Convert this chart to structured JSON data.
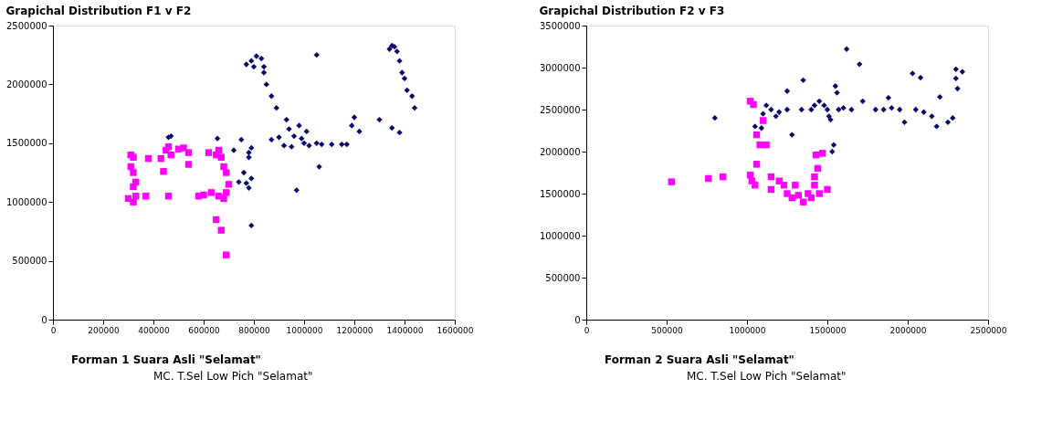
{
  "chart_data": [
    {
      "type": "scatter",
      "title": "Grapichal Distribution F1 v F2",
      "xlim": [
        0,
        1600000
      ],
      "ylim": [
        0,
        2500000
      ],
      "xticks": [
        0,
        200000,
        400000,
        600000,
        800000,
        1000000,
        1200000,
        1400000,
        1600000
      ],
      "yticks": [
        0,
        500000,
        1000000,
        1500000,
        2000000,
        2500000
      ],
      "grid": false,
      "annotations": [
        "Forman 1 Suara Asli \"Selamat\"",
        "MC. T.Sel Low Pich \"Selamat\""
      ],
      "series": [
        {
          "color": "#0a0a6e",
          "marker": "diamond",
          "x": [
            460000,
            470000,
            655000,
            720000,
            750000,
            780000,
            790000,
            780000,
            760000,
            740000,
            770000,
            790000,
            780000,
            790000,
            770000,
            790000,
            800000,
            810000,
            830000,
            840000,
            840000,
            850000,
            870000,
            890000,
            930000,
            940000,
            980000,
            1010000,
            920000,
            950000,
            960000,
            990000,
            1000000,
            1020000,
            1050000,
            1070000,
            1110000,
            1150000,
            1170000,
            1060000,
            970000,
            900000,
            870000,
            1050000,
            1190000,
            1200000,
            1220000,
            1300000,
            1340000,
            1350000,
            1370000,
            1380000,
            1390000,
            1400000,
            1410000,
            1430000,
            1440000,
            1350000,
            1380000,
            1360000
          ],
          "values": [
            1550000,
            1560000,
            1540000,
            1440000,
            1530000,
            1420000,
            1460000,
            1380000,
            1250000,
            1170000,
            1160000,
            1200000,
            1120000,
            800000,
            2170000,
            2200000,
            2150000,
            2240000,
            2220000,
            2150000,
            2100000,
            2000000,
            1900000,
            1800000,
            1700000,
            1620000,
            1650000,
            1600000,
            1480000,
            1470000,
            1560000,
            1540000,
            1500000,
            1480000,
            1500000,
            1490000,
            1490000,
            1490000,
            1490000,
            1300000,
            1100000,
            1550000,
            1530000,
            2250000,
            1650000,
            1720000,
            1600000,
            1700000,
            2300000,
            2330000,
            2280000,
            2200000,
            2100000,
            2050000,
            1950000,
            1900000,
            1800000,
            1630000,
            1590000,
            2320000
          ]
        },
        {
          "color": "#ff00ff",
          "marker": "square",
          "x": [
            310000,
            320000,
            310000,
            320000,
            300000,
            320000,
            330000,
            320000,
            330000,
            370000,
            380000,
            440000,
            430000,
            450000,
            460000,
            470000,
            500000,
            520000,
            540000,
            540000,
            460000,
            580000,
            600000,
            630000,
            650000,
            660000,
            670000,
            680000,
            690000,
            700000,
            690000,
            680000,
            650000,
            670000,
            690000,
            620000,
            660000
          ],
          "values": [
            1400000,
            1380000,
            1300000,
            1250000,
            1030000,
            1000000,
            1050000,
            1130000,
            1170000,
            1050000,
            1370000,
            1260000,
            1370000,
            1440000,
            1470000,
            1400000,
            1450000,
            1460000,
            1420000,
            1320000,
            1050000,
            1050000,
            1060000,
            1080000,
            1400000,
            1440000,
            1380000,
            1300000,
            1250000,
            1150000,
            1080000,
            1030000,
            850000,
            760000,
            550000,
            1420000,
            1050000
          ]
        }
      ]
    },
    {
      "type": "scatter",
      "title": "Grapichal Distribution F2 v F3",
      "xlim": [
        0,
        2500000
      ],
      "ylim": [
        0,
        3500000
      ],
      "xticks": [
        0,
        500000,
        1000000,
        1500000,
        2000000,
        2500000
      ],
      "yticks": [
        0,
        500000,
        1000000,
        1500000,
        2000000,
        2500000,
        3000000,
        3500000
      ],
      "grid": false,
      "annotations": [
        "Forman 2 Suara Asli \"Selamat\"",
        "MC. T.Sel Low Pich \"Selamat\""
      ],
      "series": [
        {
          "color": "#0a0a6e",
          "marker": "diamond",
          "x": [
            800000,
            1050000,
            1090000,
            1100000,
            1120000,
            1150000,
            1180000,
            1200000,
            1250000,
            1250000,
            1280000,
            1340000,
            1350000,
            1400000,
            1420000,
            1450000,
            1480000,
            1500000,
            1520000,
            1550000,
            1560000,
            1570000,
            1600000,
            1620000,
            1650000,
            1700000,
            1720000,
            1800000,
            1850000,
            1880000,
            1900000,
            1950000,
            1980000,
            2030000,
            2080000,
            2050000,
            2100000,
            2150000,
            2180000,
            2200000,
            2250000,
            2280000,
            2300000,
            2300000,
            2310000,
            2340000,
            1530000,
            1540000,
            1510000
          ],
          "values": [
            2400000,
            2300000,
            2280000,
            2450000,
            2550000,
            2500000,
            2420000,
            2470000,
            2720000,
            2500000,
            2200000,
            2500000,
            2850000,
            2500000,
            2550000,
            2600000,
            2550000,
            2500000,
            2380000,
            2780000,
            2700000,
            2500000,
            2520000,
            3220000,
            2500000,
            3040000,
            2600000,
            2500000,
            2500000,
            2640000,
            2520000,
            2500000,
            2350000,
            2930000,
            2880000,
            2500000,
            2470000,
            2420000,
            2300000,
            2650000,
            2350000,
            2400000,
            2980000,
            2870000,
            2750000,
            2950000,
            2000000,
            2080000,
            2420000
          ]
        },
        {
          "color": "#ff00ff",
          "marker": "square",
          "x": [
            530000,
            760000,
            850000,
            1020000,
            1030000,
            1050000,
            1060000,
            1020000,
            1040000,
            1060000,
            1080000,
            1100000,
            1120000,
            1150000,
            1150000,
            1200000,
            1230000,
            1250000,
            1280000,
            1300000,
            1320000,
            1350000,
            1380000,
            1400000,
            1420000,
            1420000,
            1440000,
            1430000,
            1470000,
            1500000,
            1450000
          ],
          "values": [
            1640000,
            1680000,
            1700000,
            1720000,
            1650000,
            1600000,
            1850000,
            2600000,
            2560000,
            2200000,
            2080000,
            2370000,
            2080000,
            1700000,
            1550000,
            1650000,
            1600000,
            1500000,
            1450000,
            1600000,
            1480000,
            1400000,
            1500000,
            1450000,
            1600000,
            1700000,
            1800000,
            1960000,
            1980000,
            1550000,
            1500000
          ]
        }
      ]
    }
  ]
}
